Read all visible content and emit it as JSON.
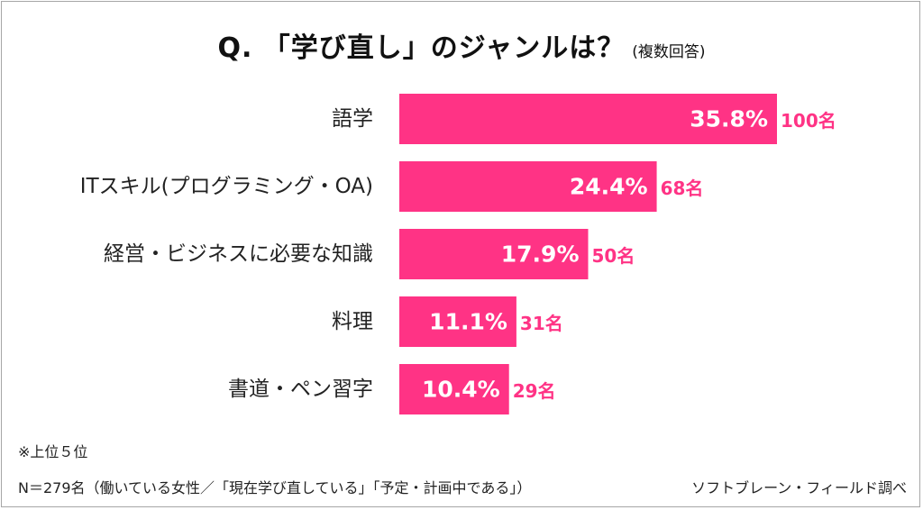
{
  "title": "Q. 「学び直し」のジャンルは？",
  "subtitle": "(複数回答)",
  "chart_data": {
    "type": "bar",
    "orientation": "horizontal",
    "categories": [
      "語学",
      "ITスキル(プログラミング・OA)",
      "経営・ビジネスに必要な知識",
      "料理",
      "書道・ペン習字"
    ],
    "values": [
      35.8,
      24.4,
      17.9,
      11.1,
      10.4
    ],
    "value_labels": [
      "35.8%",
      "24.4%",
      "17.9%",
      "11.1%",
      "10.4%"
    ],
    "count_labels": [
      "100名",
      "68名",
      "50名",
      "31名",
      "29名"
    ],
    "xlim": [
      0,
      35.8
    ],
    "grid": false,
    "legend": "none"
  },
  "colors": {
    "bar": "#FF3385",
    "count_text": "#FF3385",
    "value_text": "#FFFFFF",
    "category_text": "#222222"
  },
  "footnotes": {
    "rank": "※上位５位",
    "sample": "N＝279名（働いている女性／「現在学び直している」「予定・計画中である」）",
    "source": "ソフトブレーン・フィールド調べ"
  }
}
